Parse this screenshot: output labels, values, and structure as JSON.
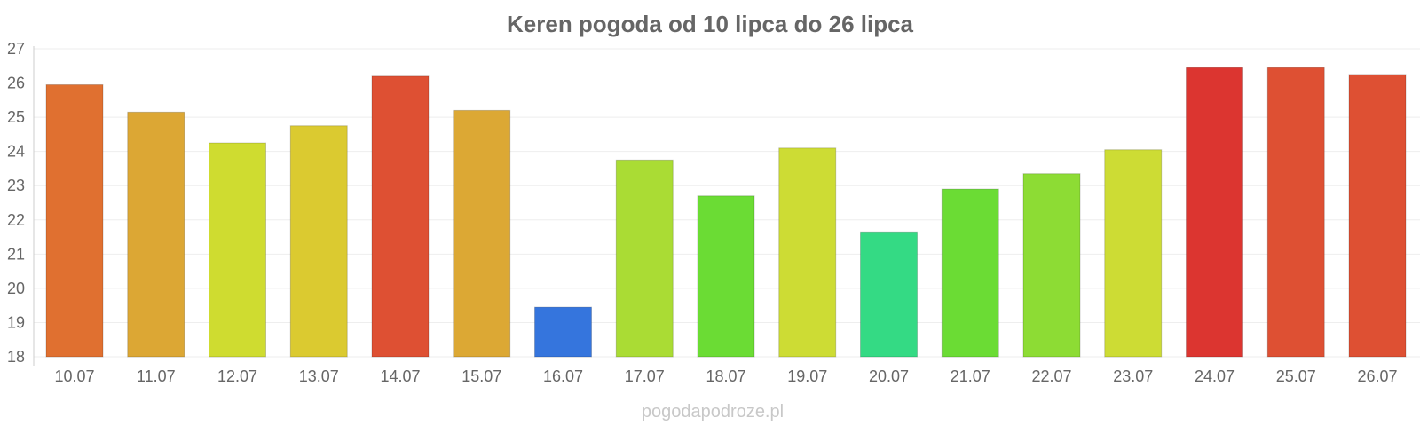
{
  "chart_data": {
    "type": "bar",
    "title": "Keren pogoda od 10 lipca do 26 lipca",
    "credit": "pogodapodroze.pl",
    "ylim": [
      18,
      27
    ],
    "yticks": [
      "18",
      "19",
      "20",
      "21",
      "22",
      "23",
      "24",
      "25",
      "26",
      "27"
    ],
    "grid": true,
    "categories": [
      "10.07",
      "11.07",
      "12.07",
      "13.07",
      "14.07",
      "15.07",
      "16.07",
      "17.07",
      "18.07",
      "19.07",
      "20.07",
      "21.07",
      "22.07",
      "23.07",
      "24.07",
      "25.07",
      "26.07"
    ],
    "values": [
      25.95,
      25.15,
      24.25,
      24.75,
      26.2,
      25.2,
      19.45,
      23.75,
      22.7,
      24.1,
      21.65,
      22.9,
      23.35,
      24.05,
      26.45,
      26.45,
      26.25
    ],
    "colors": [
      "#e07030",
      "#dca734",
      "#cfdc30",
      "#dbca30",
      "#de5033",
      "#dca834",
      "#3575dd",
      "#aadc34",
      "#6bdc34",
      "#cddc34",
      "#34da84",
      "#6bdc34",
      "#8ddc34",
      "#cddc34",
      "#dc3530",
      "#de5033",
      "#de5033"
    ]
  }
}
